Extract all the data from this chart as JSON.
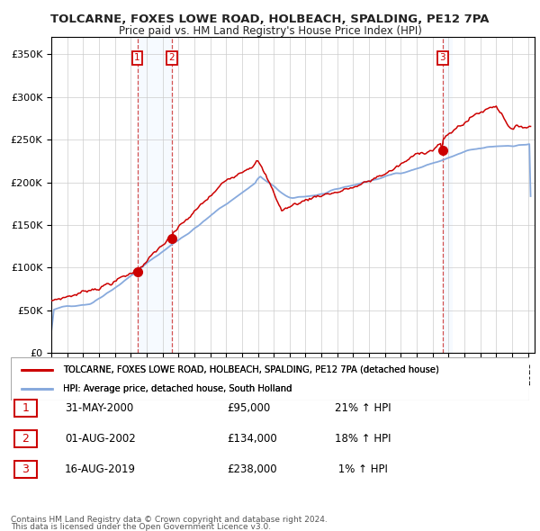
{
  "title": "TOLCARNE, FOXES LOWE ROAD, HOLBEACH, SPALDING, PE12 7PA",
  "subtitle": "Price paid vs. HM Land Registry's House Price Index (HPI)",
  "ylim": [
    0,
    370000
  ],
  "yticks": [
    0,
    50000,
    100000,
    150000,
    200000,
    250000,
    300000,
    350000
  ],
  "sale_points": [
    {
      "date_num_year": 2000,
      "date_num_month": 5,
      "price": 95000,
      "label": "1",
      "date_str": "31-MAY-2000",
      "price_str": "£95,000",
      "pct_str": "21% ↑ HPI"
    },
    {
      "date_num_year": 2002,
      "date_num_month": 8,
      "price": 134000,
      "label": "2",
      "date_str": "01-AUG-2002",
      "price_str": "£134,000",
      "pct_str": "18% ↑ HPI"
    },
    {
      "date_num_year": 2019,
      "date_num_month": 8,
      "price": 238000,
      "label": "3",
      "date_str": "16-AUG-2019",
      "price_str": "£238,000",
      "pct_str": " 1% ↑ HPI"
    }
  ],
  "legend_property_label": "TOLCARNE, FOXES LOWE ROAD, HOLBEACH, SPALDING, PE12 7PA (detached house)",
  "legend_hpi_label": "HPI: Average price, detached house, South Holland",
  "property_line_color": "#cc0000",
  "hpi_line_color": "#88aadd",
  "footnote1": "Contains HM Land Registry data © Crown copyright and database right 2024.",
  "footnote2": "This data is licensed under the Open Government Licence v3.0.",
  "vline_color": "#cc3333",
  "shade_color": "#ddeeff",
  "label_box_color": "#cc0000",
  "background_color": "#ffffff",
  "grid_color": "#cccccc",
  "xstart_year": 1995,
  "xend_year": 2025
}
